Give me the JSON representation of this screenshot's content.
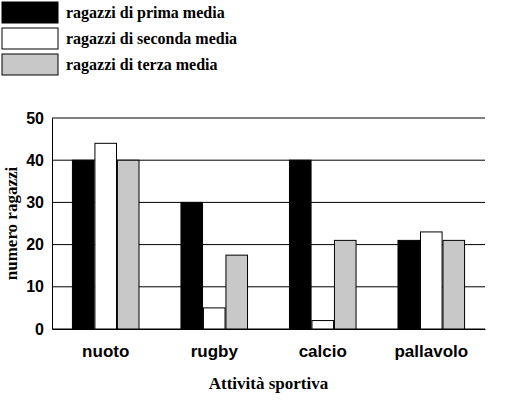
{
  "chart_data": {
    "type": "bar",
    "x_label": "Attività sportiva",
    "y_label": "numero ragazzi",
    "categories": [
      "nuoto",
      "rugby",
      "calcio",
      "pallavolo"
    ],
    "series": [
      {
        "name": "ragazzi di prima media",
        "color": "#000000",
        "values": [
          40,
          30,
          40,
          21
        ]
      },
      {
        "name": "ragazzi di seconda media",
        "color": "#ffffff",
        "values": [
          44,
          5,
          2,
          23
        ]
      },
      {
        "name": "ragazzi di terza media",
        "color": "#c8c8c8",
        "values": [
          40,
          17.5,
          21,
          21
        ]
      }
    ],
    "ylim": [
      0,
      50
    ],
    "yticks": [
      0,
      10,
      20,
      30,
      40,
      50
    ],
    "grid": true,
    "legend": "top-left"
  }
}
